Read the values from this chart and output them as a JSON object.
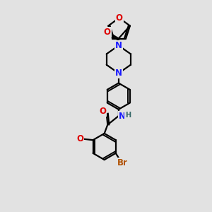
{
  "background_color": "#e2e2e2",
  "bond_color": "#000000",
  "line_width": 1.6,
  "atom_colors": {
    "N": "#1a1aff",
    "O": "#dd0000",
    "Br": "#b05000",
    "H": "#336666",
    "C": "#000000"
  },
  "font_size": 8.5,
  "figsize": [
    3.0,
    3.0
  ],
  "dpi": 100,
  "xlim": [
    2.5,
    7.5
  ],
  "ylim": [
    0.5,
    10.0
  ]
}
